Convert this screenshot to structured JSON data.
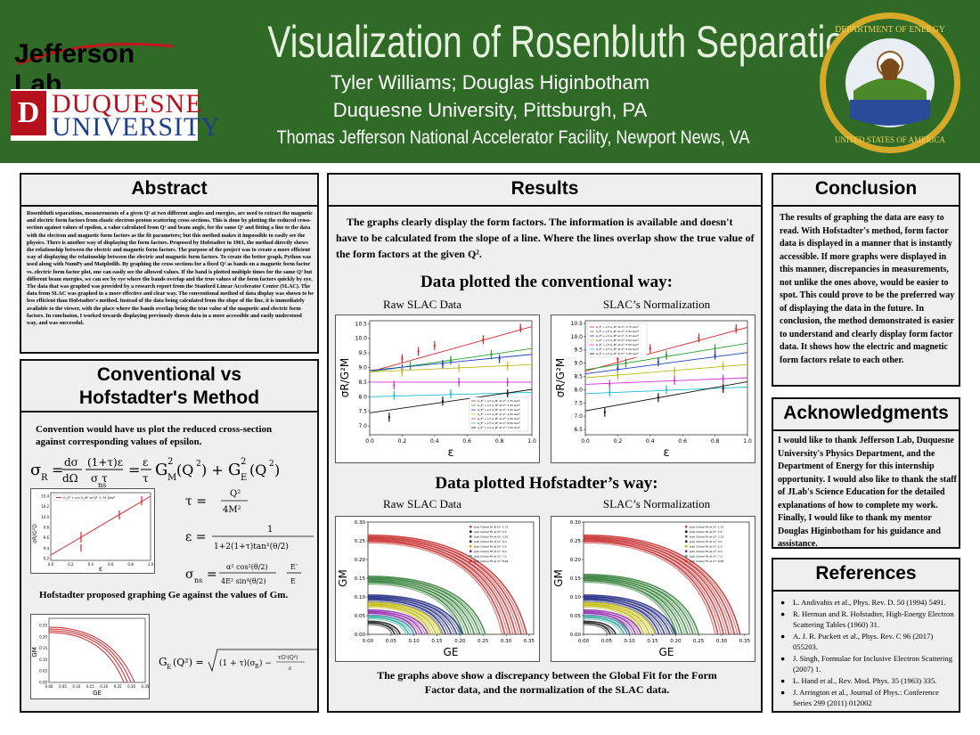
{
  "header": {
    "title": "Visualization of Rosenbluth Separations",
    "authors": "Tyler Williams; Douglas Higinbotham",
    "affiliation": "Duquesne University, Pittsburgh, PA",
    "facility": "Thomas Jefferson National Accelerator Facility, Newport News, VA",
    "jlab_logo": "Jefferson Lab",
    "du_logo_line1": "DUQUESNE",
    "du_logo_line2": "UNIVERSITY",
    "du_badge": "D",
    "doe_seal": "DEPARTMENT OF ENERGY · UNITED STATES OF AMERICA"
  },
  "abstract": {
    "heading": "Abstract",
    "text": "Rosenbluth separations, measurements of a given Q² at two different angles and energies, are used to extract the magnetic and electric form factors from elastic electron-proton scattering cross sections. This is done by plotting the reduced cross-section against values of epsilon, a value calculated from Q² and beam angle, for the same Q² and fitting a line to the data with the electron and magnetic form factors as the fit parameters; but this method makes it impossible to easily see the physics. There is another way of displaying the form factors. Proposed by Hofstadter in 1961, the method directly shows the relationship between the electric and magnetic form factors. The purpose of the project was to create a more efficient way of displaying the relationship between the electric and magnetic form factors. To create the better graph, Python was used along with NumPy and Matplotlib. By graphing the cross sections for a fixed Q² as bands on a magnetic form factor vs. electric form factor plot, one can easily see the allowed values. If the band is plotted multiple times for the same Q² but different beam energies, we can see by eye where the bands overlap and the true values of the form factors quickly by eye. The data that was graphed was provided by a research report from the Stanford Linear Accelerator Center (SLAC). The data from SLAC was graphed in a more effective and clear way. The conventional method of data display was shown to be less efficient than Hofstadter's method. Instead of the data being calculated from the slope of the line, it is immediately available to the viewer, with the place where the bands overlap being the true value of the magnetic and electric form factors. In conclusion, I worked towards displaying previously shown data in a more accessible and easily understood way, and was successful."
  },
  "conventional": {
    "heading_line1": "Conventional vs",
    "heading_line2": "Hofstadter's Method",
    "intro": "Convention would have us plot the reduced cross-section against corresponding values of epsilon.",
    "hofstadter_intro": "Hofstadter proposed graphing Ge against the values of Gm.",
    "eq_sigma_r": "σR = (dσ/dΩ)·(1+τ)ε/(σns τ) = (ε/τ)GM²(Q²) + GE²(Q²)",
    "eq_tau": "τ = Q²/4M²",
    "eq_eps": "ε = 1/(1+2(1+τ)tan²(θ/2))",
    "eq_ns": "σns = α²cos²(θ/2)/(4E²sin⁴(θ/2)) · E′/E",
    "eq_ge": "GE(Q²) = √((1+τ)(σR) − τGM²(Q²)/ε)",
    "mini_legend": "G_E² + ε/τ G_M² at Q²: 1.75 GeV²",
    "mini_xlabel": "ε",
    "mini_ylabel": "σR/G²D",
    "mini_h_xlabel": "GE",
    "mini_h_ylabel": "GM",
    "mini_x_ticks": [
      "0.0",
      "0.2",
      "0.4",
      "0.6",
      "0.8",
      "1.0"
    ],
    "mini_y_ticks": [
      "10.4",
      "10.2",
      "10.0",
      "9.8",
      "9.6",
      "9.4",
      "9.2"
    ],
    "mini_h_x_ticks": [
      "0.00",
      "0.05",
      "0.10",
      "0.15",
      "0.20",
      "0.25",
      "0.30",
      "0.35"
    ],
    "mini_h_y_ticks": [
      "0.25",
      "0.20",
      "0.15",
      "0.10",
      "0.05",
      "0.00"
    ]
  },
  "results": {
    "heading": "Results",
    "intro": "The graphs clearly display the form factors. The information is available and doesn't have to be calculated from the slope of a line. Where the lines overlap show the true value of the form factors at the given Q².",
    "conv_heading": "Data plotted the conventional way:",
    "hof_heading": "Data plotted Hofstadter’s way:",
    "raw_label": "Raw SLAC Data",
    "norm_label": "SLAC’s Normalization",
    "raw_label_2": "Raw SLAC Data",
    "norm_label_2": "SLAC’s Normalization",
    "conv_xlabel": "ε",
    "conv_ylabel": "σR/G²M",
    "hof_xlabel": "GE",
    "hof_ylabel": "GM",
    "caption": "The graphs above show a discrepancy between the Global Fit for the Form Factor data, and the normalization of the SLAC data."
  },
  "conclusion": {
    "heading": "Conclusion",
    "text": "The results of graphing the data are easy to read. With Hofstadter's method, form factor data is displayed in a manner that is instantly accessible. If more graphs were displayed in this manner, discrepancies in measurements, not unlike the ones above, would be easier to spot. This could prove to be the preferred way of displaying the data in the future. In conclusion, the method demonstrated is easier to understand and clearly display form factor data. It shows how the electric and magnetic form factors relate to each other."
  },
  "acknowledgments": {
    "heading": "Acknowledgments",
    "text": "I would like to thank Jefferson Lab, Duquesne University's Physics Department, and the Department of Energy for this internship opportunity. I would also like to thank the staff of JLab's Science Education for the detailed explanations of how to complete my work. Finally, I would like to thank my mentor Douglas Higinbotham for his guidance and assistance."
  },
  "references": {
    "heading": "References",
    "items": [
      "L. Andivahis et al., Phys. Rev. D. 50 (1994) 5491.",
      "R. Herman and R. Hofstadter, High-Energy Electron Scattering Tables (1960) 31.",
      "A. J. R. Puckett et al., Phys. Rev. C 96 (2017) 055203.",
      "J. Singh, Formulae for Inclusive Electron Scattering (2007) 1.",
      "L. Hand et al., Rev. Mod. Phys. 35 (1963) 335.",
      "J. Arrington et al., Journal of Phys.: Conference Series 299 (2011) 012002"
    ]
  },
  "chart_data": [
    {
      "type": "line",
      "title": "Raw SLAC Data",
      "xlabel": "ε",
      "ylabel": "σR/G²M",
      "xlim": [
        0.0,
        1.0
      ],
      "ylim": [
        6.7,
        10.6
      ],
      "x_ticks": [
        0.0,
        0.2,
        0.4,
        0.6,
        0.8,
        1.0
      ],
      "y_ticks": [
        7.0,
        7.5,
        8.0,
        8.5,
        9.0,
        9.5,
        10.0,
        10.5
      ],
      "legend_position": "lower-right",
      "legend": [
        "G_E² + ε/τ G_M² at Q²: 1.75 GeV²",
        "G_E² + ε/τ G_M² at Q²: 2.50 GeV²",
        "G_E² + ε/τ G_M² at Q²: 3.25 GeV²",
        "G_E² + ε/τ G_M² at Q²: 4.00 GeV²",
        "G_E² + ε/τ G_M² at Q²: 5.00 GeV²",
        "G_E² + ε/τ G_M² at Q²: 6.00 GeV²",
        "G_E² + ε/τ G_M² at Q²: 7.00 GeV²"
      ],
      "series": [
        {
          "color": "#d62728",
          "line": [
            [
              0,
              8.85
            ],
            [
              1,
              10.4
            ]
          ],
          "points": [
            [
              0.2,
              9.3
            ],
            [
              0.3,
              9.55
            ],
            [
              0.4,
              9.75
            ],
            [
              0.7,
              9.95
            ],
            [
              0.93,
              10.35
            ]
          ]
        },
        {
          "color": "#2ca02c",
          "line": [
            [
              0,
              8.85
            ],
            [
              1,
              9.65
            ]
          ],
          "points": [
            [
              0.25,
              9.05
            ],
            [
              0.5,
              9.25
            ],
            [
              0.75,
              9.45
            ]
          ]
        },
        {
          "color": "#1f3fbf",
          "line": [
            [
              0,
              8.9
            ],
            [
              1,
              9.45
            ]
          ],
          "points": [
            [
              0.2,
              8.95
            ],
            [
              0.45,
              9.1
            ],
            [
              0.8,
              9.3
            ]
          ]
        },
        {
          "color": "#bcbd22",
          "line": [
            [
              0,
              8.85
            ],
            [
              1,
              9.1
            ]
          ],
          "points": [
            [
              0.2,
              8.85
            ],
            [
              0.55,
              9.0
            ],
            [
              0.85,
              9.05
            ]
          ]
        },
        {
          "color": "#d32fd3",
          "line": [
            [
              0,
              8.5
            ],
            [
              1,
              8.5
            ]
          ],
          "points": [
            [
              0.15,
              8.4
            ],
            [
              0.55,
              8.5
            ],
            [
              0.85,
              8.5
            ]
          ]
        },
        {
          "color": "#17becf",
          "line": [
            [
              0,
              8.0
            ],
            [
              1,
              8.15
            ]
          ],
          "points": [
            [
              0.15,
              8.05
            ],
            [
              0.5,
              8.1
            ]
          ]
        },
        {
          "color": "#111111",
          "line": [
            [
              0,
              7.45
            ],
            [
              1,
              8.25
            ]
          ],
          "points": [
            [
              0.12,
              7.3
            ],
            [
              0.45,
              7.85
            ],
            [
              0.85,
              8.1
            ]
          ]
        }
      ]
    },
    {
      "type": "line",
      "title": "SLAC’s Normalization",
      "xlabel": "ε",
      "ylabel": "σR/G²M",
      "xlim": [
        0.0,
        1.0
      ],
      "ylim": [
        6.3,
        10.6
      ],
      "x_ticks": [
        0.0,
        0.2,
        0.4,
        0.6,
        0.8,
        1.0
      ],
      "y_ticks": [
        6.5,
        7.0,
        7.5,
        8.0,
        8.5,
        9.0,
        9.5,
        10.0,
        10.5
      ],
      "legend_position": "upper-left",
      "legend": [
        "G_E² + ε/τ G_M² at Q²: 1.75 GeV²",
        "G_E² + ε/τ G_M² at Q²: 2.50 GeV²",
        "G_E² + ε/τ G_M² at Q²: 3.25 GeV²",
        "G_E² + ε/τ G_M² at Q²: 4.00 GeV²",
        "G_E² + ε/τ G_M² at Q²: 5.00 GeV²",
        "G_E² + ε/τ G_M² at Q²: 6.00 GeV²",
        "G_E² + ε/τ G_M² at Q²: 7.00 GeV²"
      ],
      "series": [
        {
          "color": "#d62728",
          "line": [
            [
              0,
              8.7
            ],
            [
              1,
              10.35
            ]
          ],
          "points": [
            [
              0.2,
              9.15
            ],
            [
              0.4,
              9.55
            ],
            [
              0.7,
              9.95
            ],
            [
              0.93,
              10.3
            ]
          ]
        },
        {
          "color": "#2ca02c",
          "line": [
            [
              0,
              8.75
            ],
            [
              1,
              9.75
            ]
          ],
          "points": [
            [
              0.25,
              9.0
            ],
            [
              0.5,
              9.3
            ],
            [
              0.8,
              9.55
            ]
          ]
        },
        {
          "color": "#1f3fbf",
          "line": [
            [
              0,
              8.6
            ],
            [
              1,
              9.4
            ]
          ],
          "points": [
            [
              0.2,
              8.8
            ],
            [
              0.45,
              9.05
            ],
            [
              0.8,
              9.3
            ]
          ]
        },
        {
          "color": "#bcbd22",
          "line": [
            [
              0,
              8.45
            ],
            [
              1,
              8.95
            ]
          ],
          "points": [
            [
              0.2,
              8.55
            ],
            [
              0.55,
              8.7
            ],
            [
              0.85,
              8.9
            ]
          ]
        },
        {
          "color": "#d32fd3",
          "line": [
            [
              0,
              8.2
            ],
            [
              1,
              8.45
            ]
          ],
          "points": [
            [
              0.15,
              8.2
            ],
            [
              0.55,
              8.35
            ],
            [
              0.85,
              8.4
            ]
          ]
        },
        {
          "color": "#17becf",
          "line": [
            [
              0,
              7.85
            ],
            [
              1,
              8.1
            ]
          ],
          "points": [
            [
              0.15,
              7.9
            ],
            [
              0.5,
              8.0
            ]
          ]
        },
        {
          "color": "#111111",
          "line": [
            [
              0,
              7.2
            ],
            [
              1,
              8.3
            ]
          ],
          "points": [
            [
              0.12,
              7.15
            ],
            [
              0.45,
              7.7
            ],
            [
              0.85,
              8.05
            ]
          ]
        }
      ]
    },
    {
      "type": "line",
      "title": "Raw SLAC Data",
      "xlabel": "GE",
      "ylabel": "GM",
      "xlim": [
        0.0,
        0.36
      ],
      "ylim": [
        0.0,
        0.3
      ],
      "x_ticks": [
        0.0,
        0.05,
        0.1,
        0.15,
        0.2,
        0.25,
        0.3,
        0.35
      ],
      "y_ticks": [
        0.0,
        0.05,
        0.1,
        0.15,
        0.2,
        0.25,
        0.3
      ],
      "legend_position": "upper-right",
      "legend": [
        "JLab Global Fit at Q²: 1.75",
        "JLab Global Fit at Q²: 2.5",
        "JLab Global Fit at Q²: 3.25",
        "JLab Global Fit at Q²: 4.0",
        "JLab Global Fit at Q²: 5.0",
        "JLab Global Fit at Q²: 6.0",
        "JLab Global Fit at Q²: 7.0",
        "JLab Global Fit at Q²: 8.83"
      ],
      "bands": [
        {
          "color": "#c62828",
          "gm0": 0.265,
          "ge_end": 0.345,
          "count": 5
        },
        {
          "color": "#2e7d32",
          "gm0": 0.155,
          "ge_end": 0.255,
          "count": 5
        },
        {
          "color": "#1a237e",
          "gm0": 0.105,
          "ge_end": 0.205,
          "count": 4
        },
        {
          "color": "#c0b800",
          "gm0": 0.085,
          "ge_end": 0.16,
          "count": 3
        },
        {
          "color": "#8e24aa",
          "gm0": 0.065,
          "ge_end": 0.13,
          "count": 3
        },
        {
          "color": "#26a69a",
          "gm0": 0.05,
          "ge_end": 0.1,
          "count": 2
        },
        {
          "color": "#111111",
          "gm0": 0.035,
          "ge_end": 0.07,
          "count": 2
        }
      ]
    },
    {
      "type": "line",
      "title": "SLAC’s Normalization",
      "xlabel": "GE",
      "ylabel": "GM",
      "xlim": [
        0.0,
        0.36
      ],
      "ylim": [
        0.0,
        0.3
      ],
      "x_ticks": [
        0.0,
        0.05,
        0.1,
        0.15,
        0.2,
        0.25,
        0.3,
        0.35
      ],
      "y_ticks": [
        0.0,
        0.05,
        0.1,
        0.15,
        0.2,
        0.25,
        0.3
      ],
      "legend_position": "upper-right",
      "legend": [
        "JLab Global Fit at Q²: 1.75",
        "JLab Global Fit at Q²: 2.5",
        "JLab Global Fit at Q²: 3.25",
        "JLab Global Fit at Q²: 4.0",
        "JLab Global Fit at Q²: 5.0",
        "JLab Global Fit at Q²: 6.0",
        "JLab Global Fit at Q²: 7.0",
        "JLab Global Fit at Q²: 8.83"
      ],
      "bands": [
        {
          "color": "#c62828",
          "gm0": 0.265,
          "ge_end": 0.34,
          "count": 5
        },
        {
          "color": "#2e7d32",
          "gm0": 0.16,
          "ge_end": 0.25,
          "count": 5
        },
        {
          "color": "#1a237e",
          "gm0": 0.105,
          "ge_end": 0.2,
          "count": 4
        },
        {
          "color": "#c0b800",
          "gm0": 0.085,
          "ge_end": 0.155,
          "count": 3
        },
        {
          "color": "#8e24aa",
          "gm0": 0.065,
          "ge_end": 0.125,
          "count": 3
        },
        {
          "color": "#26a69a",
          "gm0": 0.05,
          "ge_end": 0.1,
          "count": 2
        },
        {
          "color": "#111111",
          "gm0": 0.035,
          "ge_end": 0.07,
          "count": 2
        }
      ]
    }
  ]
}
